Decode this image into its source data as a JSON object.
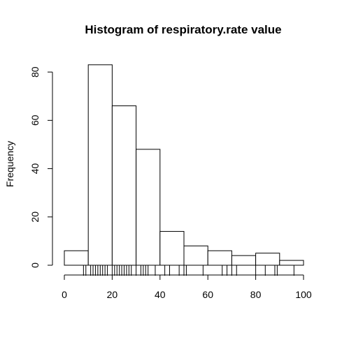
{
  "chart_data": {
    "type": "bar",
    "title": "Histogram of respiratory.rate value",
    "xlabel": "",
    "ylabel": "Frequency",
    "xlim": [
      0,
      100
    ],
    "ylim": [
      0,
      85
    ],
    "x_ticks": [
      0,
      20,
      40,
      60,
      80,
      100
    ],
    "y_ticks": [
      0,
      20,
      40,
      60,
      80
    ],
    "bins": [
      {
        "from": 0,
        "to": 10,
        "count": 6
      },
      {
        "from": 10,
        "to": 20,
        "count": 83
      },
      {
        "from": 20,
        "to": 30,
        "count": 66
      },
      {
        "from": 30,
        "to": 40,
        "count": 48
      },
      {
        "from": 40,
        "to": 50,
        "count": 14
      },
      {
        "from": 50,
        "to": 60,
        "count": 8
      },
      {
        "from": 60,
        "to": 70,
        "count": 6
      },
      {
        "from": 70,
        "to": 80,
        "count": 4
      },
      {
        "from": 80,
        "to": 90,
        "count": 5
      },
      {
        "from": 90,
        "to": 100,
        "count": 2
      }
    ],
    "rug": [
      8,
      9,
      11,
      12,
      13,
      14,
      15,
      16,
      17,
      18,
      20,
      21,
      22,
      23,
      24,
      25,
      26,
      27,
      28,
      30,
      32,
      33,
      34,
      35,
      38,
      42,
      44,
      48,
      50,
      51,
      58,
      66,
      68,
      70,
      72,
      80,
      84,
      88,
      89,
      96
    ],
    "grid": false,
    "bar_fill": "#ffffff",
    "bar_stroke": "#000000"
  }
}
